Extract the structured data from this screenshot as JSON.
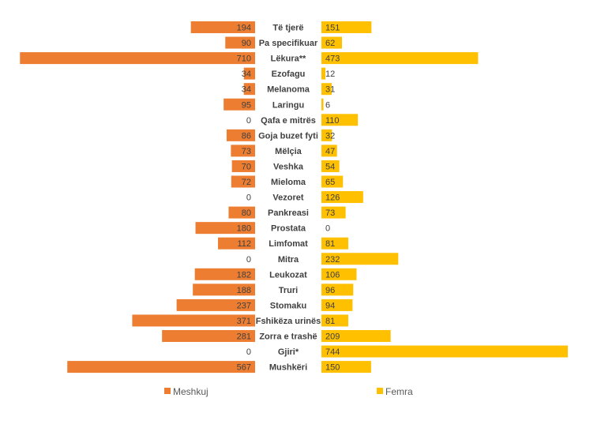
{
  "chart_data": {
    "type": "bar",
    "orientation": "horizontal",
    "layout": "butterfly",
    "categories": [
      "Të tjerë",
      "Pa specifikuar",
      "Lëkura**",
      "Ezofagu",
      "Melanoma",
      "Laringu",
      "Qafa e mitrës",
      "Goja buzet fyti",
      "Mëlçia",
      "Veshka",
      "Mieloma",
      "Vezoret",
      "Pankreasi",
      "Prostata",
      "Limfomat",
      "Mitra",
      "Leukozat",
      "Truri",
      "Stomaku",
      "Fshikëza urinës",
      "Zorra e trashë",
      "Gjiri*",
      "Mushkëri"
    ],
    "series": [
      {
        "name": "Meshkuj",
        "color": "#ED7D31",
        "side": "left",
        "values": [
          194,
          90,
          710,
          34,
          34,
          95,
          0,
          86,
          73,
          70,
          72,
          0,
          80,
          180,
          112,
          0,
          182,
          188,
          237,
          371,
          281,
          0,
          567
        ]
      },
      {
        "name": "Femra",
        "color": "#FFC000",
        "side": "right",
        "values": [
          151,
          62,
          473,
          12,
          31,
          6,
          110,
          32,
          47,
          54,
          65,
          126,
          73,
          0,
          81,
          232,
          106,
          96,
          94,
          81,
          209,
          744,
          150
        ]
      }
    ],
    "legend_position": "bottom",
    "grid": false
  }
}
